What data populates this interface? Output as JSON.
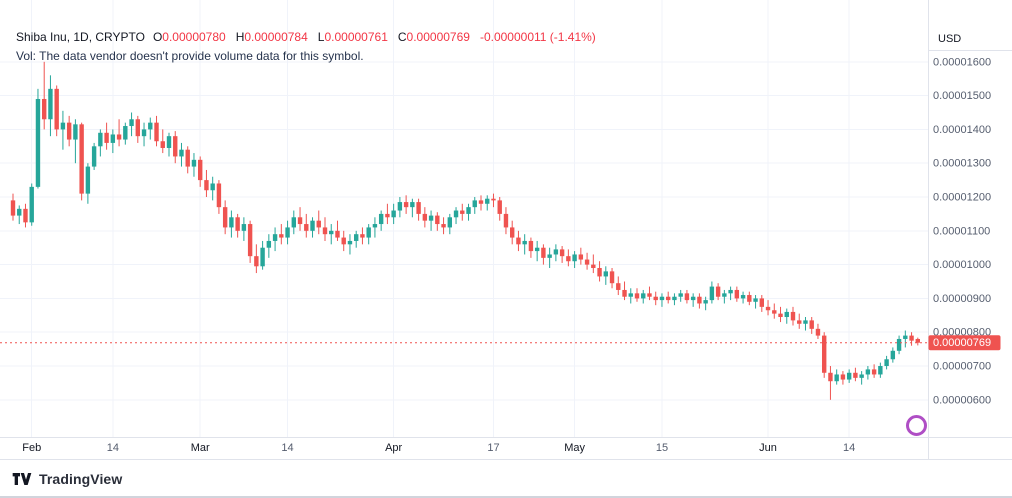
{
  "header": {
    "title": "Shiba Inu, 1D, CRYPTO",
    "symbol": "Shiba Inu",
    "interval": "1D",
    "exchange": "CRYPTO",
    "ohlc": [
      {
        "key": "O",
        "value": "0.00000780"
      },
      {
        "key": "H",
        "value": "0.00000784"
      },
      {
        "key": "L",
        "value": "0.00000761"
      },
      {
        "key": "C",
        "value": "0.00000769"
      }
    ],
    "change": "-0.00000011 (-1.41%)",
    "vol_message": "Vol: The data vendor doesn't provide volume data for this symbol."
  },
  "footer": {
    "brand": "TradingView"
  },
  "chart_data": {
    "type": "candlestick",
    "title": "Shiba Inu, 1D, CRYPTO",
    "note": "candle values are USD prices in units of 1e-8 (e.g. 769 = 0.00000769)",
    "colors": {
      "up": "#26a69a",
      "down": "#ef5350",
      "text_red": "#f23645",
      "grid": "#f0f3fa",
      "border": "#e0e3eb",
      "axis_text": "#555d6e",
      "axis_text_strong": "#131722",
      "badge": "#a63bbf"
    },
    "last_price_1e8": 769,
    "last_price_label": "0.00000769",
    "y_axis": {
      "currency": "USD",
      "min": 490,
      "max": 1700,
      "grid": true,
      "ticks": [
        {
          "value": 1600,
          "label": "0.00001600"
        },
        {
          "value": 1500,
          "label": "0.00001500"
        },
        {
          "value": 1400,
          "label": "0.00001400"
        },
        {
          "value": 1300,
          "label": "0.00001300"
        },
        {
          "value": 1200,
          "label": "0.00001200"
        },
        {
          "value": 1100,
          "label": "0.00001100"
        },
        {
          "value": 1000,
          "label": "0.00001000"
        },
        {
          "value": 900,
          "label": "0.00000900"
        },
        {
          "value": 800,
          "label": "0.00000800"
        },
        {
          "value": 700,
          "label": "0.00000700"
        },
        {
          "value": 600,
          "label": "0.00000600"
        }
      ]
    },
    "x_axis": {
      "ticks": [
        {
          "index": 3,
          "label": "Feb",
          "emphasis": true
        },
        {
          "index": 16,
          "label": "14",
          "emphasis": false
        },
        {
          "index": 30,
          "label": "Mar",
          "emphasis": true
        },
        {
          "index": 44,
          "label": "14",
          "emphasis": false
        },
        {
          "index": 61,
          "label": "Apr",
          "emphasis": true
        },
        {
          "index": 77,
          "label": "17",
          "emphasis": false
        },
        {
          "index": 90,
          "label": "May",
          "emphasis": true
        },
        {
          "index": 104,
          "label": "15",
          "emphasis": false
        },
        {
          "index": 121,
          "label": "Jun",
          "emphasis": true
        },
        {
          "index": 134,
          "label": "14",
          "emphasis": false
        }
      ]
    },
    "candles_ohlc_1e8": [
      [
        1190,
        1210,
        1130,
        1145
      ],
      [
        1145,
        1175,
        1120,
        1165
      ],
      [
        1165,
        1180,
        1110,
        1125
      ],
      [
        1125,
        1240,
        1115,
        1230
      ],
      [
        1230,
        1520,
        1225,
        1490
      ],
      [
        1490,
        1600,
        1400,
        1430
      ],
      [
        1430,
        1560,
        1380,
        1520
      ],
      [
        1520,
        1530,
        1380,
        1400
      ],
      [
        1400,
        1455,
        1340,
        1420
      ],
      [
        1420,
        1440,
        1350,
        1370
      ],
      [
        1370,
        1430,
        1300,
        1415
      ],
      [
        1415,
        1420,
        1190,
        1210
      ],
      [
        1210,
        1300,
        1180,
        1290
      ],
      [
        1290,
        1360,
        1280,
        1350
      ],
      [
        1350,
        1400,
        1320,
        1390
      ],
      [
        1390,
        1420,
        1340,
        1360
      ],
      [
        1360,
        1400,
        1330,
        1385
      ],
      [
        1385,
        1430,
        1350,
        1370
      ],
      [
        1370,
        1420,
        1355,
        1410
      ],
      [
        1410,
        1450,
        1380,
        1430
      ],
      [
        1430,
        1440,
        1360,
        1380
      ],
      [
        1380,
        1420,
        1350,
        1400
      ],
      [
        1400,
        1435,
        1370,
        1420
      ],
      [
        1420,
        1440,
        1350,
        1365
      ],
      [
        1365,
        1400,
        1330,
        1345
      ],
      [
        1345,
        1390,
        1320,
        1380
      ],
      [
        1380,
        1395,
        1300,
        1320
      ],
      [
        1320,
        1360,
        1290,
        1340
      ],
      [
        1340,
        1350,
        1270,
        1290
      ],
      [
        1290,
        1330,
        1260,
        1310
      ],
      [
        1310,
        1320,
        1230,
        1250
      ],
      [
        1250,
        1280,
        1200,
        1220
      ],
      [
        1220,
        1260,
        1190,
        1240
      ],
      [
        1240,
        1250,
        1150,
        1170
      ],
      [
        1170,
        1190,
        1090,
        1110
      ],
      [
        1110,
        1160,
        1080,
        1140
      ],
      [
        1140,
        1150,
        1080,
        1100
      ],
      [
        1100,
        1140,
        1070,
        1120
      ],
      [
        1120,
        1130,
        1005,
        1025
      ],
      [
        1025,
        1060,
        975,
        995
      ],
      [
        995,
        1070,
        985,
        1050
      ],
      [
        1050,
        1090,
        1020,
        1070
      ],
      [
        1070,
        1110,
        1040,
        1090
      ],
      [
        1090,
        1120,
        1060,
        1080
      ],
      [
        1080,
        1130,
        1060,
        1110
      ],
      [
        1110,
        1160,
        1090,
        1140
      ],
      [
        1140,
        1170,
        1100,
        1120
      ],
      [
        1120,
        1150,
        1080,
        1100
      ],
      [
        1100,
        1140,
        1080,
        1130
      ],
      [
        1130,
        1160,
        1090,
        1110
      ],
      [
        1110,
        1140,
        1070,
        1090
      ],
      [
        1090,
        1120,
        1060,
        1100
      ],
      [
        1100,
        1130,
        1070,
        1080
      ],
      [
        1080,
        1100,
        1040,
        1060
      ],
      [
        1060,
        1090,
        1030,
        1070
      ],
      [
        1070,
        1100,
        1050,
        1090
      ],
      [
        1090,
        1110,
        1060,
        1080
      ],
      [
        1080,
        1120,
        1060,
        1110
      ],
      [
        1110,
        1140,
        1080,
        1120
      ],
      [
        1120,
        1160,
        1100,
        1150
      ],
      [
        1150,
        1180,
        1120,
        1140
      ],
      [
        1140,
        1180,
        1120,
        1160
      ],
      [
        1160,
        1200,
        1140,
        1185
      ],
      [
        1185,
        1205,
        1150,
        1170
      ],
      [
        1170,
        1195,
        1140,
        1185
      ],
      [
        1185,
        1195,
        1130,
        1150
      ],
      [
        1150,
        1170,
        1110,
        1130
      ],
      [
        1130,
        1160,
        1100,
        1145
      ],
      [
        1145,
        1155,
        1100,
        1120
      ],
      [
        1120,
        1140,
        1090,
        1110
      ],
      [
        1110,
        1150,
        1090,
        1140
      ],
      [
        1140,
        1170,
        1120,
        1160
      ],
      [
        1160,
        1180,
        1130,
        1150
      ],
      [
        1150,
        1180,
        1130,
        1170
      ],
      [
        1170,
        1200,
        1150,
        1190
      ],
      [
        1190,
        1205,
        1160,
        1180
      ],
      [
        1180,
        1205,
        1160,
        1195
      ],
      [
        1195,
        1210,
        1170,
        1190
      ],
      [
        1190,
        1200,
        1130,
        1150
      ],
      [
        1150,
        1170,
        1090,
        1110
      ],
      [
        1110,
        1130,
        1060,
        1080
      ],
      [
        1080,
        1100,
        1040,
        1060
      ],
      [
        1060,
        1090,
        1030,
        1070
      ],
      [
        1070,
        1080,
        1020,
        1040
      ],
      [
        1040,
        1070,
        1010,
        1050
      ],
      [
        1050,
        1060,
        1000,
        1020
      ],
      [
        1020,
        1050,
        990,
        1030
      ],
      [
        1030,
        1060,
        1010,
        1045
      ],
      [
        1045,
        1055,
        1005,
        1025
      ],
      [
        1025,
        1045,
        995,
        1010
      ],
      [
        1010,
        1040,
        990,
        1030
      ],
      [
        1030,
        1050,
        1000,
        1015
      ],
      [
        1015,
        1035,
        985,
        1000
      ],
      [
        1000,
        1030,
        975,
        990
      ],
      [
        990,
        1010,
        950,
        965
      ],
      [
        965,
        995,
        940,
        980
      ],
      [
        980,
        990,
        930,
        945
      ],
      [
        945,
        965,
        910,
        925
      ],
      [
        925,
        950,
        895,
        905
      ],
      [
        905,
        930,
        885,
        915
      ],
      [
        915,
        930,
        890,
        900
      ],
      [
        900,
        925,
        885,
        915
      ],
      [
        915,
        935,
        895,
        905
      ],
      [
        905,
        920,
        880,
        895
      ],
      [
        895,
        915,
        875,
        905
      ],
      [
        905,
        920,
        885,
        895
      ],
      [
        895,
        915,
        880,
        905
      ],
      [
        905,
        925,
        890,
        915
      ],
      [
        915,
        925,
        885,
        895
      ],
      [
        895,
        915,
        875,
        905
      ],
      [
        905,
        915,
        870,
        885
      ],
      [
        885,
        905,
        865,
        895
      ],
      [
        895,
        950,
        885,
        935
      ],
      [
        935,
        945,
        895,
        905
      ],
      [
        905,
        925,
        885,
        915
      ],
      [
        915,
        935,
        895,
        925
      ],
      [
        925,
        935,
        890,
        900
      ],
      [
        900,
        920,
        885,
        910
      ],
      [
        910,
        920,
        880,
        890
      ],
      [
        890,
        910,
        870,
        900
      ],
      [
        900,
        910,
        860,
        875
      ],
      [
        875,
        895,
        850,
        865
      ],
      [
        865,
        885,
        840,
        855
      ],
      [
        855,
        875,
        830,
        845
      ],
      [
        845,
        870,
        825,
        860
      ],
      [
        860,
        875,
        820,
        835
      ],
      [
        835,
        855,
        810,
        825
      ],
      [
        825,
        845,
        805,
        835
      ],
      [
        835,
        845,
        795,
        810
      ],
      [
        810,
        825,
        780,
        790
      ],
      [
        790,
        800,
        665,
        680
      ],
      [
        680,
        700,
        600,
        655
      ],
      [
        655,
        690,
        645,
        675
      ],
      [
        675,
        685,
        645,
        660
      ],
      [
        660,
        690,
        650,
        680
      ],
      [
        680,
        695,
        655,
        665
      ],
      [
        665,
        685,
        645,
        675
      ],
      [
        675,
        700,
        660,
        690
      ],
      [
        690,
        705,
        665,
        675
      ],
      [
        675,
        710,
        665,
        700
      ],
      [
        700,
        730,
        690,
        720
      ],
      [
        720,
        755,
        710,
        745
      ],
      [
        745,
        790,
        735,
        780
      ],
      [
        780,
        805,
        755,
        790
      ],
      [
        790,
        800,
        760,
        775
      ],
      [
        780,
        784,
        761,
        769
      ]
    ]
  }
}
